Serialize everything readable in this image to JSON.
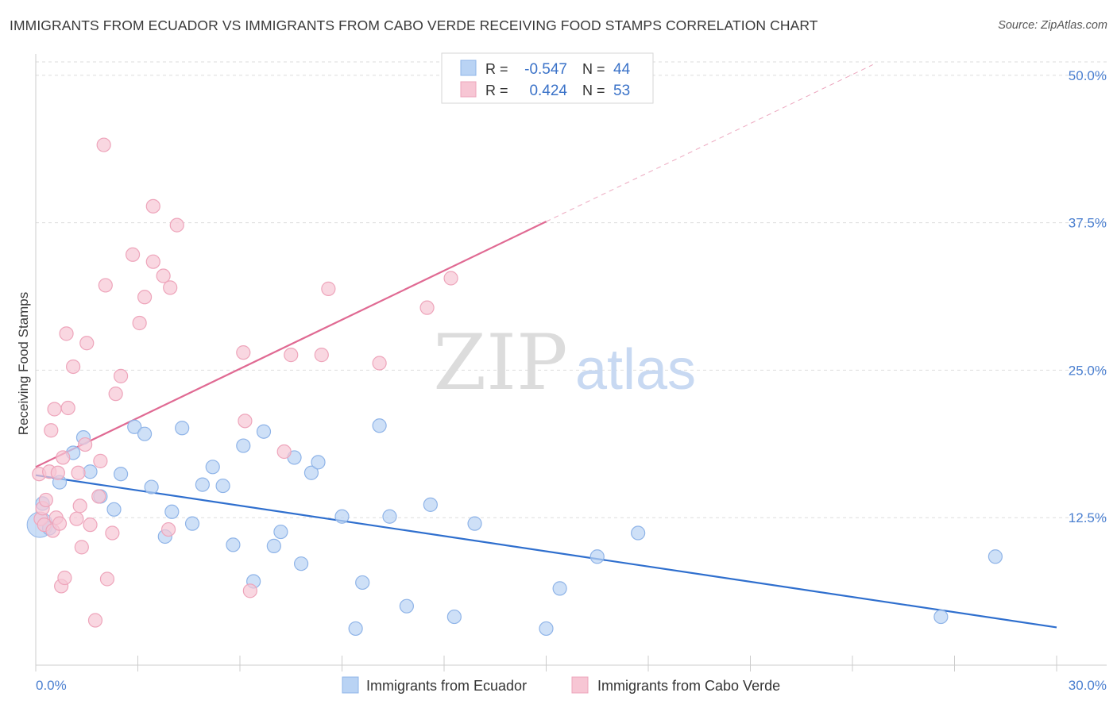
{
  "header": {
    "title": "IMMIGRANTS FROM ECUADOR VS IMMIGRANTS FROM CABO VERDE RECEIVING FOOD STAMPS CORRELATION CHART",
    "source": "Source: ZipAtlas.com"
  },
  "watermark": {
    "zip": "ZIP",
    "atlas": "atlas"
  },
  "colors": {
    "ecuador_fill": "#b9d3f4",
    "ecuador_stroke": "#8fb4e8",
    "ecuador_line": "#2f6fce",
    "caboverde_fill": "#f7c6d4",
    "caboverde_stroke": "#eea5bb",
    "caboverde_line": "#e06a93",
    "grid": "#dddddd",
    "tick_text": "#4a7fd0"
  },
  "stats": {
    "r_label": "R =",
    "n_label": "N =",
    "ecuador": {
      "r": "-0.547",
      "n": "44"
    },
    "caboverde": {
      "r": "0.424",
      "n": "53"
    }
  },
  "chart_data": {
    "type": "scatter",
    "title": "IMMIGRANTS FROM ECUADOR VS IMMIGRANTS FROM CABO VERDE RECEIVING FOOD STAMPS CORRELATION CHART",
    "xlabel": "",
    "ylabel": "Receiving Food Stamps",
    "xlim": [
      0,
      30
    ],
    "ylim": [
      0,
      51
    ],
    "x_tick_labels": [
      "0.0%",
      "30.0%"
    ],
    "y_ticks": [
      12.5,
      25.0,
      37.5,
      50.0
    ],
    "y_tick_labels": [
      "12.5%",
      "25.0%",
      "37.5%",
      "50.0%"
    ],
    "grid": true,
    "legend_position": "bottom-center",
    "series": [
      {
        "name": "Immigrants from Ecuador",
        "color": "#b9d3f4",
        "points": [
          [
            0.2,
            13.7
          ],
          [
            0.4,
            11.6
          ],
          [
            0.7,
            15.5
          ],
          [
            1.1,
            18.0
          ],
          [
            1.4,
            19.3
          ],
          [
            1.6,
            16.4
          ],
          [
            1.9,
            14.3
          ],
          [
            2.3,
            13.2
          ],
          [
            2.5,
            16.2
          ],
          [
            2.9,
            20.2
          ],
          [
            3.2,
            19.6
          ],
          [
            3.4,
            15.1
          ],
          [
            3.8,
            10.9
          ],
          [
            4.0,
            13.0
          ],
          [
            4.3,
            20.1
          ],
          [
            4.6,
            12.0
          ],
          [
            4.9,
            15.3
          ],
          [
            5.2,
            16.8
          ],
          [
            5.5,
            15.2
          ],
          [
            5.8,
            10.2
          ],
          [
            6.1,
            18.6
          ],
          [
            6.4,
            7.1
          ],
          [
            6.7,
            19.8
          ],
          [
            7.0,
            10.1
          ],
          [
            7.2,
            11.3
          ],
          [
            7.6,
            17.6
          ],
          [
            7.8,
            8.6
          ],
          [
            8.1,
            16.3
          ],
          [
            8.3,
            17.2
          ],
          [
            9.0,
            12.6
          ],
          [
            9.4,
            3.1
          ],
          [
            9.6,
            7.0
          ],
          [
            10.1,
            20.3
          ],
          [
            10.4,
            12.6
          ],
          [
            10.9,
            5.0
          ],
          [
            11.6,
            13.6
          ],
          [
            12.3,
            4.1
          ],
          [
            12.9,
            12.0
          ],
          [
            15.0,
            3.1
          ],
          [
            15.4,
            6.5
          ],
          [
            16.5,
            9.2
          ],
          [
            17.7,
            11.2
          ],
          [
            26.6,
            4.1
          ],
          [
            28.2,
            9.2
          ]
        ]
      },
      {
        "name": "Immigrants from Cabo Verde",
        "color": "#f7c6d4",
        "points": [
          [
            0.1,
            16.2
          ],
          [
            0.15,
            12.4
          ],
          [
            0.2,
            13.3
          ],
          [
            0.25,
            11.9
          ],
          [
            0.3,
            14.0
          ],
          [
            0.4,
            16.4
          ],
          [
            0.45,
            19.9
          ],
          [
            0.5,
            11.4
          ],
          [
            0.55,
            21.7
          ],
          [
            0.6,
            12.5
          ],
          [
            0.65,
            16.3
          ],
          [
            0.7,
            12.0
          ],
          [
            0.75,
            6.7
          ],
          [
            0.8,
            17.6
          ],
          [
            0.85,
            7.4
          ],
          [
            0.9,
            28.1
          ],
          [
            0.95,
            21.8
          ],
          [
            1.1,
            25.3
          ],
          [
            1.2,
            12.4
          ],
          [
            1.25,
            16.3
          ],
          [
            1.3,
            13.5
          ],
          [
            1.35,
            10.0
          ],
          [
            1.45,
            18.7
          ],
          [
            1.5,
            27.3
          ],
          [
            1.6,
            11.9
          ],
          [
            1.75,
            3.8
          ],
          [
            1.85,
            14.3
          ],
          [
            1.9,
            17.3
          ],
          [
            2.0,
            44.1
          ],
          [
            2.05,
            32.2
          ],
          [
            2.1,
            7.3
          ],
          [
            2.25,
            11.2
          ],
          [
            2.35,
            23.0
          ],
          [
            2.5,
            24.5
          ],
          [
            2.85,
            34.8
          ],
          [
            3.05,
            29.0
          ],
          [
            3.2,
            31.2
          ],
          [
            3.45,
            38.9
          ],
          [
            3.45,
            34.2
          ],
          [
            3.75,
            33.0
          ],
          [
            3.9,
            11.5
          ],
          [
            3.95,
            32.0
          ],
          [
            4.15,
            37.3
          ],
          [
            6.1,
            26.5
          ],
          [
            6.15,
            20.7
          ],
          [
            6.3,
            6.3
          ],
          [
            7.3,
            18.1
          ],
          [
            7.5,
            26.3
          ],
          [
            8.4,
            26.3
          ],
          [
            8.6,
            31.9
          ],
          [
            10.1,
            25.6
          ],
          [
            11.5,
            30.3
          ],
          [
            12.2,
            32.8
          ]
        ]
      }
    ],
    "trend_lines": [
      {
        "series": "Immigrants from Ecuador",
        "x": [
          0,
          30
        ],
        "y": [
          16.1,
          3.2
        ],
        "style": "solid"
      },
      {
        "series": "Immigrants from Cabo Verde",
        "x": [
          0,
          15
        ],
        "y": [
          16.8,
          37.6
        ],
        "style": "solid"
      },
      {
        "series": "Immigrants from Cabo Verde",
        "x": [
          15,
          24.6
        ],
        "y": [
          37.6,
          50.9
        ],
        "style": "dashed"
      }
    ]
  }
}
